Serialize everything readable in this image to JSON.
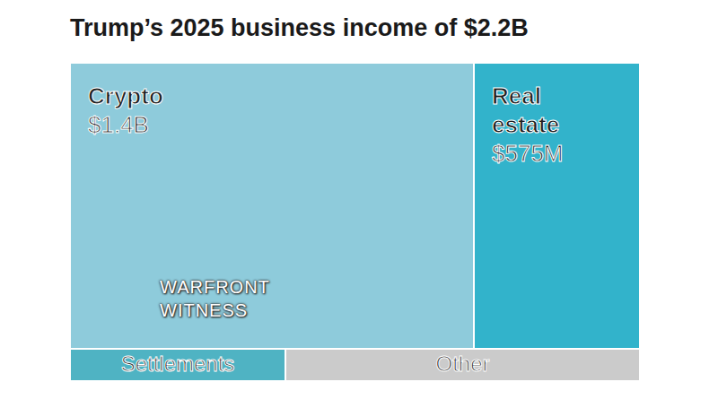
{
  "chart_data": {
    "type": "treemap",
    "title": "Trump’s 2025 business income of $2.2B",
    "rows": [
      {
        "categories": [
          "Crypto",
          "Real estate"
        ],
        "values": [
          1400,
          575
        ],
        "value_labels": [
          "$1.4B",
          "$575M"
        ],
        "colors": [
          "#8ecbdb",
          "#32b3cb"
        ]
      },
      {
        "categories": [
          "Settlements",
          "Other"
        ],
        "values": [
          85,
          140
        ],
        "value_labels": [
          null,
          null
        ],
        "colors": [
          "#4fb3c3",
          "#cbcbcb"
        ]
      }
    ],
    "annotations": [
      "WARFRONT WITNESS"
    ]
  }
}
